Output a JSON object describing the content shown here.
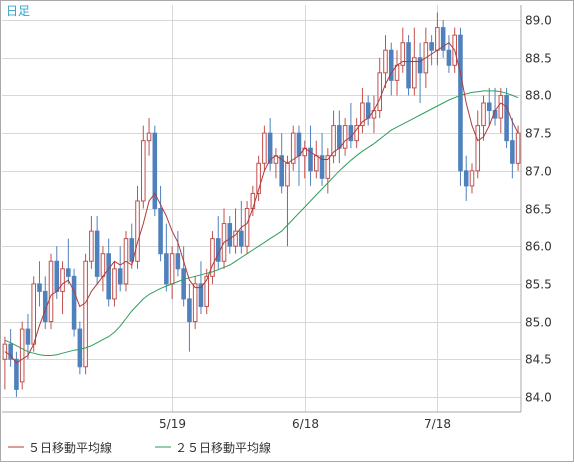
{
  "period_label": "日足",
  "legend": [
    {
      "label": "５日移動平均線",
      "color": "#b03a3a"
    },
    {
      "label": "２５日移動平均線",
      "color": "#2e9e5b"
    }
  ],
  "colors": {
    "up": "#c0504d",
    "down": "#4f81bd",
    "ma5": "#b03a3a",
    "ma25": "#2e9e5b",
    "grid": "#d7d7d7",
    "axis": "#a9a9a9",
    "label": "#35a4c4"
  },
  "chart_data": {
    "type": "candlestick",
    "grid": true,
    "y_axis": {
      "min": 83.8,
      "max": 89.2,
      "ticks": [
        "84.0",
        "84.5",
        "85.0",
        "85.5",
        "86.0",
        "86.5",
        "87.0",
        "87.5",
        "88.0",
        "88.5",
        "89.0"
      ],
      "side": "right"
    },
    "x_axis": {
      "tick_labels": [
        {
          "label": "5/19",
          "index": 29
        },
        {
          "label": "6/18",
          "index": 52
        },
        {
          "label": "7/18",
          "index": 75
        }
      ]
    },
    "candles": [
      [
        84.5,
        84.8,
        84.1,
        84.7
      ],
      [
        84.7,
        84.9,
        84.4,
        84.5
      ],
      [
        84.5,
        84.6,
        84.0,
        84.1
      ],
      [
        84.2,
        85.0,
        84.1,
        84.9
      ],
      [
        84.9,
        85.1,
        84.5,
        84.7
      ],
      [
        84.7,
        85.6,
        84.6,
        85.5
      ],
      [
        85.5,
        85.8,
        85.2,
        85.4
      ],
      [
        85.4,
        85.6,
        84.9,
        85.0
      ],
      [
        85.0,
        85.9,
        84.9,
        85.8
      ],
      [
        85.8,
        86.0,
        85.3,
        85.4
      ],
      [
        85.4,
        85.8,
        85.1,
        85.7
      ],
      [
        85.7,
        86.1,
        85.5,
        85.6
      ],
      [
        85.6,
        85.7,
        84.8,
        84.9
      ],
      [
        84.9,
        85.0,
        84.3,
        84.4
      ],
      [
        84.4,
        85.9,
        84.3,
        85.8
      ],
      [
        85.8,
        86.4,
        85.7,
        86.2
      ],
      [
        86.2,
        86.4,
        85.5,
        85.6
      ],
      [
        85.6,
        86.0,
        85.4,
        85.9
      ],
      [
        85.9,
        86.1,
        85.2,
        85.3
      ],
      [
        85.3,
        85.8,
        85.2,
        85.7
      ],
      [
        85.7,
        86.0,
        85.4,
        85.5
      ],
      [
        85.5,
        86.2,
        85.4,
        86.1
      ],
      [
        86.1,
        86.3,
        85.7,
        85.8
      ],
      [
        85.8,
        86.8,
        85.7,
        86.6
      ],
      [
        86.6,
        87.6,
        86.5,
        87.4
      ],
      [
        87.4,
        87.7,
        87.2,
        87.5
      ],
      [
        87.5,
        87.6,
        86.4,
        86.5
      ],
      [
        86.5,
        86.8,
        85.8,
        85.9
      ],
      [
        85.9,
        86.3,
        85.4,
        85.5
      ],
      [
        85.5,
        86.0,
        85.3,
        85.9
      ],
      [
        85.9,
        86.2,
        85.6,
        85.7
      ],
      [
        85.7,
        86.0,
        85.2,
        85.3
      ],
      [
        85.3,
        85.5,
        84.6,
        85.0
      ],
      [
        85.0,
        85.6,
        84.9,
        85.5
      ],
      [
        85.5,
        85.8,
        85.1,
        85.2
      ],
      [
        85.2,
        85.7,
        85.1,
        85.6
      ],
      [
        85.6,
        86.2,
        85.5,
        86.1
      ],
      [
        86.1,
        86.4,
        85.7,
        85.8
      ],
      [
        85.8,
        86.5,
        85.7,
        86.3
      ],
      [
        86.3,
        86.4,
        85.9,
        86.0
      ],
      [
        86.0,
        86.5,
        85.9,
        86.2
      ],
      [
        86.2,
        86.6,
        85.9,
        86.0
      ],
      [
        86.0,
        86.6,
        85.9,
        86.5
      ],
      [
        86.5,
        86.8,
        86.4,
        86.7
      ],
      [
        86.7,
        87.2,
        86.6,
        87.1
      ],
      [
        87.1,
        87.6,
        87.0,
        87.5
      ],
      [
        87.5,
        87.7,
        87.0,
        87.1
      ],
      [
        87.1,
        87.3,
        86.9,
        87.2
      ],
      [
        87.2,
        87.5,
        86.7,
        86.8
      ],
      [
        86.8,
        87.2,
        86.0,
        87.1
      ],
      [
        87.1,
        87.6,
        87.0,
        87.5
      ],
      [
        87.5,
        87.6,
        86.8,
        87.2
      ],
      [
        87.2,
        87.4,
        86.9,
        87.3
      ],
      [
        87.3,
        87.6,
        86.8,
        87.0
      ],
      [
        87.0,
        87.4,
        86.9,
        87.2
      ],
      [
        87.2,
        87.5,
        86.8,
        86.9
      ],
      [
        86.9,
        87.3,
        86.7,
        87.2
      ],
      [
        87.2,
        87.8,
        87.1,
        87.6
      ],
      [
        87.6,
        87.8,
        87.1,
        87.3
      ],
      [
        87.3,
        87.7,
        87.2,
        87.6
      ],
      [
        87.6,
        87.9,
        87.3,
        87.4
      ],
      [
        87.4,
        87.7,
        87.3,
        87.6
      ],
      [
        87.6,
        88.1,
        87.5,
        87.9
      ],
      [
        87.9,
        88.0,
        87.6,
        87.7
      ],
      [
        87.7,
        88.0,
        87.5,
        87.8
      ],
      [
        87.8,
        88.5,
        87.7,
        88.3
      ],
      [
        88.3,
        88.8,
        88.1,
        88.6
      ],
      [
        88.6,
        88.7,
        88.0,
        88.2
      ],
      [
        88.2,
        88.6,
        88.0,
        88.4
      ],
      [
        88.4,
        88.9,
        88.3,
        88.7
      ],
      [
        88.7,
        88.8,
        88.0,
        88.1
      ],
      [
        88.1,
        88.9,
        88.0,
        88.5
      ],
      [
        88.5,
        88.7,
        87.9,
        88.3
      ],
      [
        88.3,
        88.9,
        88.1,
        88.7
      ],
      [
        88.7,
        88.8,
        88.4,
        88.6
      ],
      [
        88.6,
        89.1,
        88.4,
        88.9
      ],
      [
        88.9,
        89.0,
        88.5,
        88.6
      ],
      [
        88.6,
        88.8,
        88.3,
        88.4
      ],
      [
        88.4,
        88.9,
        88.3,
        88.8
      ],
      [
        88.8,
        88.9,
        86.8,
        87.0
      ],
      [
        87.0,
        87.2,
        86.6,
        86.8
      ],
      [
        86.8,
        87.1,
        86.7,
        87.0
      ],
      [
        87.0,
        87.8,
        86.9,
        87.6
      ],
      [
        87.6,
        88.0,
        87.4,
        87.9
      ],
      [
        87.9,
        88.1,
        87.6,
        87.8
      ],
      [
        87.8,
        88.1,
        87.6,
        87.7
      ],
      [
        87.7,
        88.1,
        87.5,
        88.0
      ],
      [
        88.0,
        88.1,
        87.3,
        87.4
      ],
      [
        87.4,
        87.7,
        86.9,
        87.1
      ],
      [
        87.1,
        87.6,
        87.0,
        87.5
      ]
    ],
    "ma5": [
      84.6,
      84.55,
      84.45,
      84.5,
      84.55,
      84.7,
      84.95,
      85.15,
      85.35,
      85.4,
      85.5,
      85.55,
      85.4,
      85.2,
      85.25,
      85.4,
      85.5,
      85.6,
      85.7,
      85.8,
      85.75,
      85.8,
      85.75,
      86.05,
      86.3,
      86.6,
      86.7,
      86.55,
      86.4,
      86.2,
      86.05,
      85.8,
      85.55,
      85.45,
      85.45,
      85.55,
      85.75,
      85.9,
      86.05,
      86.1,
      86.15,
      86.25,
      86.3,
      86.5,
      86.75,
      87.0,
      87.15,
      87.2,
      87.15,
      87.1,
      87.15,
      87.2,
      87.3,
      87.25,
      87.2,
      87.15,
      87.15,
      87.25,
      87.3,
      87.4,
      87.45,
      87.55,
      87.65,
      87.7,
      87.8,
      87.95,
      88.15,
      88.3,
      88.4,
      88.45,
      88.45,
      88.45,
      88.45,
      88.5,
      88.55,
      88.6,
      88.65,
      88.7,
      88.6,
      88.3,
      87.9,
      87.6,
      87.4,
      87.45,
      87.6,
      87.8,
      87.9,
      87.85,
      87.65,
      87.5
    ],
    "ma25": [
      84.75,
      84.72,
      84.68,
      84.64,
      84.6,
      84.58,
      84.56,
      84.55,
      84.55,
      84.56,
      84.58,
      84.6,
      84.62,
      84.63,
      84.65,
      84.68,
      84.72,
      84.76,
      84.8,
      84.86,
      84.94,
      85.04,
      85.14,
      85.22,
      85.3,
      85.36,
      85.4,
      85.44,
      85.47,
      85.5,
      85.53,
      85.56,
      85.58,
      85.6,
      85.62,
      85.64,
      85.66,
      85.69,
      85.72,
      85.75,
      85.8,
      85.85,
      85.9,
      85.95,
      86.0,
      86.05,
      86.1,
      86.15,
      86.2,
      86.28,
      86.36,
      86.44,
      86.52,
      86.6,
      86.68,
      86.76,
      86.84,
      86.92,
      87.0,
      87.07,
      87.14,
      87.2,
      87.26,
      87.31,
      87.36,
      87.42,
      87.48,
      87.54,
      87.58,
      87.62,
      87.66,
      87.7,
      87.74,
      87.78,
      87.82,
      87.86,
      87.9,
      87.94,
      87.97,
      88.0,
      88.02,
      88.04,
      88.05,
      88.06,
      88.06,
      88.06,
      88.05,
      88.03,
      88.0,
      87.97
    ]
  }
}
